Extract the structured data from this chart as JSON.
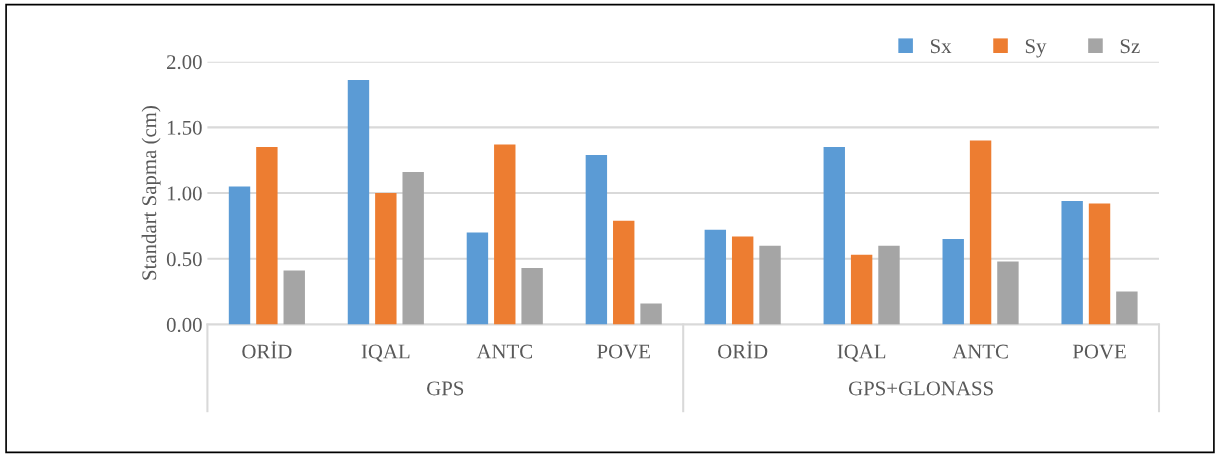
{
  "chart_data": {
    "type": "bar",
    "ylabel": "Standart Sapma (cm)",
    "categories": [
      "ORİD",
      "IQAL",
      "ANTC",
      "POVE",
      "ORİD",
      "IQAL",
      "ANTC",
      "POVE"
    ],
    "annotations": [
      "GPS",
      "GPS+GLONASS"
    ],
    "series": [
      {
        "name": "Sx",
        "color": "#5b9bd5",
        "values": [
          1.05,
          1.86,
          0.7,
          1.29,
          0.72,
          1.35,
          0.65,
          0.94
        ]
      },
      {
        "name": "Sy",
        "color": "#ed7d31",
        "values": [
          1.35,
          1.0,
          1.37,
          0.79,
          0.67,
          0.53,
          1.4,
          0.92
        ]
      },
      {
        "name": "Sz",
        "color": "#a5a5a5",
        "values": [
          0.41,
          1.16,
          0.43,
          0.16,
          0.6,
          0.6,
          0.48,
          0.25
        ]
      }
    ],
    "ylim": [
      0,
      2
    ],
    "yticks": [
      {
        "value": 0,
        "label": "0.00"
      },
      {
        "value": 0.5,
        "label": "0.50"
      },
      {
        "value": 1,
        "label": "1.00"
      },
      {
        "value": 1.5,
        "label": "1.50"
      },
      {
        "value": 2,
        "label": "2.00"
      }
    ],
    "grid": "y",
    "legend": "top right"
  }
}
